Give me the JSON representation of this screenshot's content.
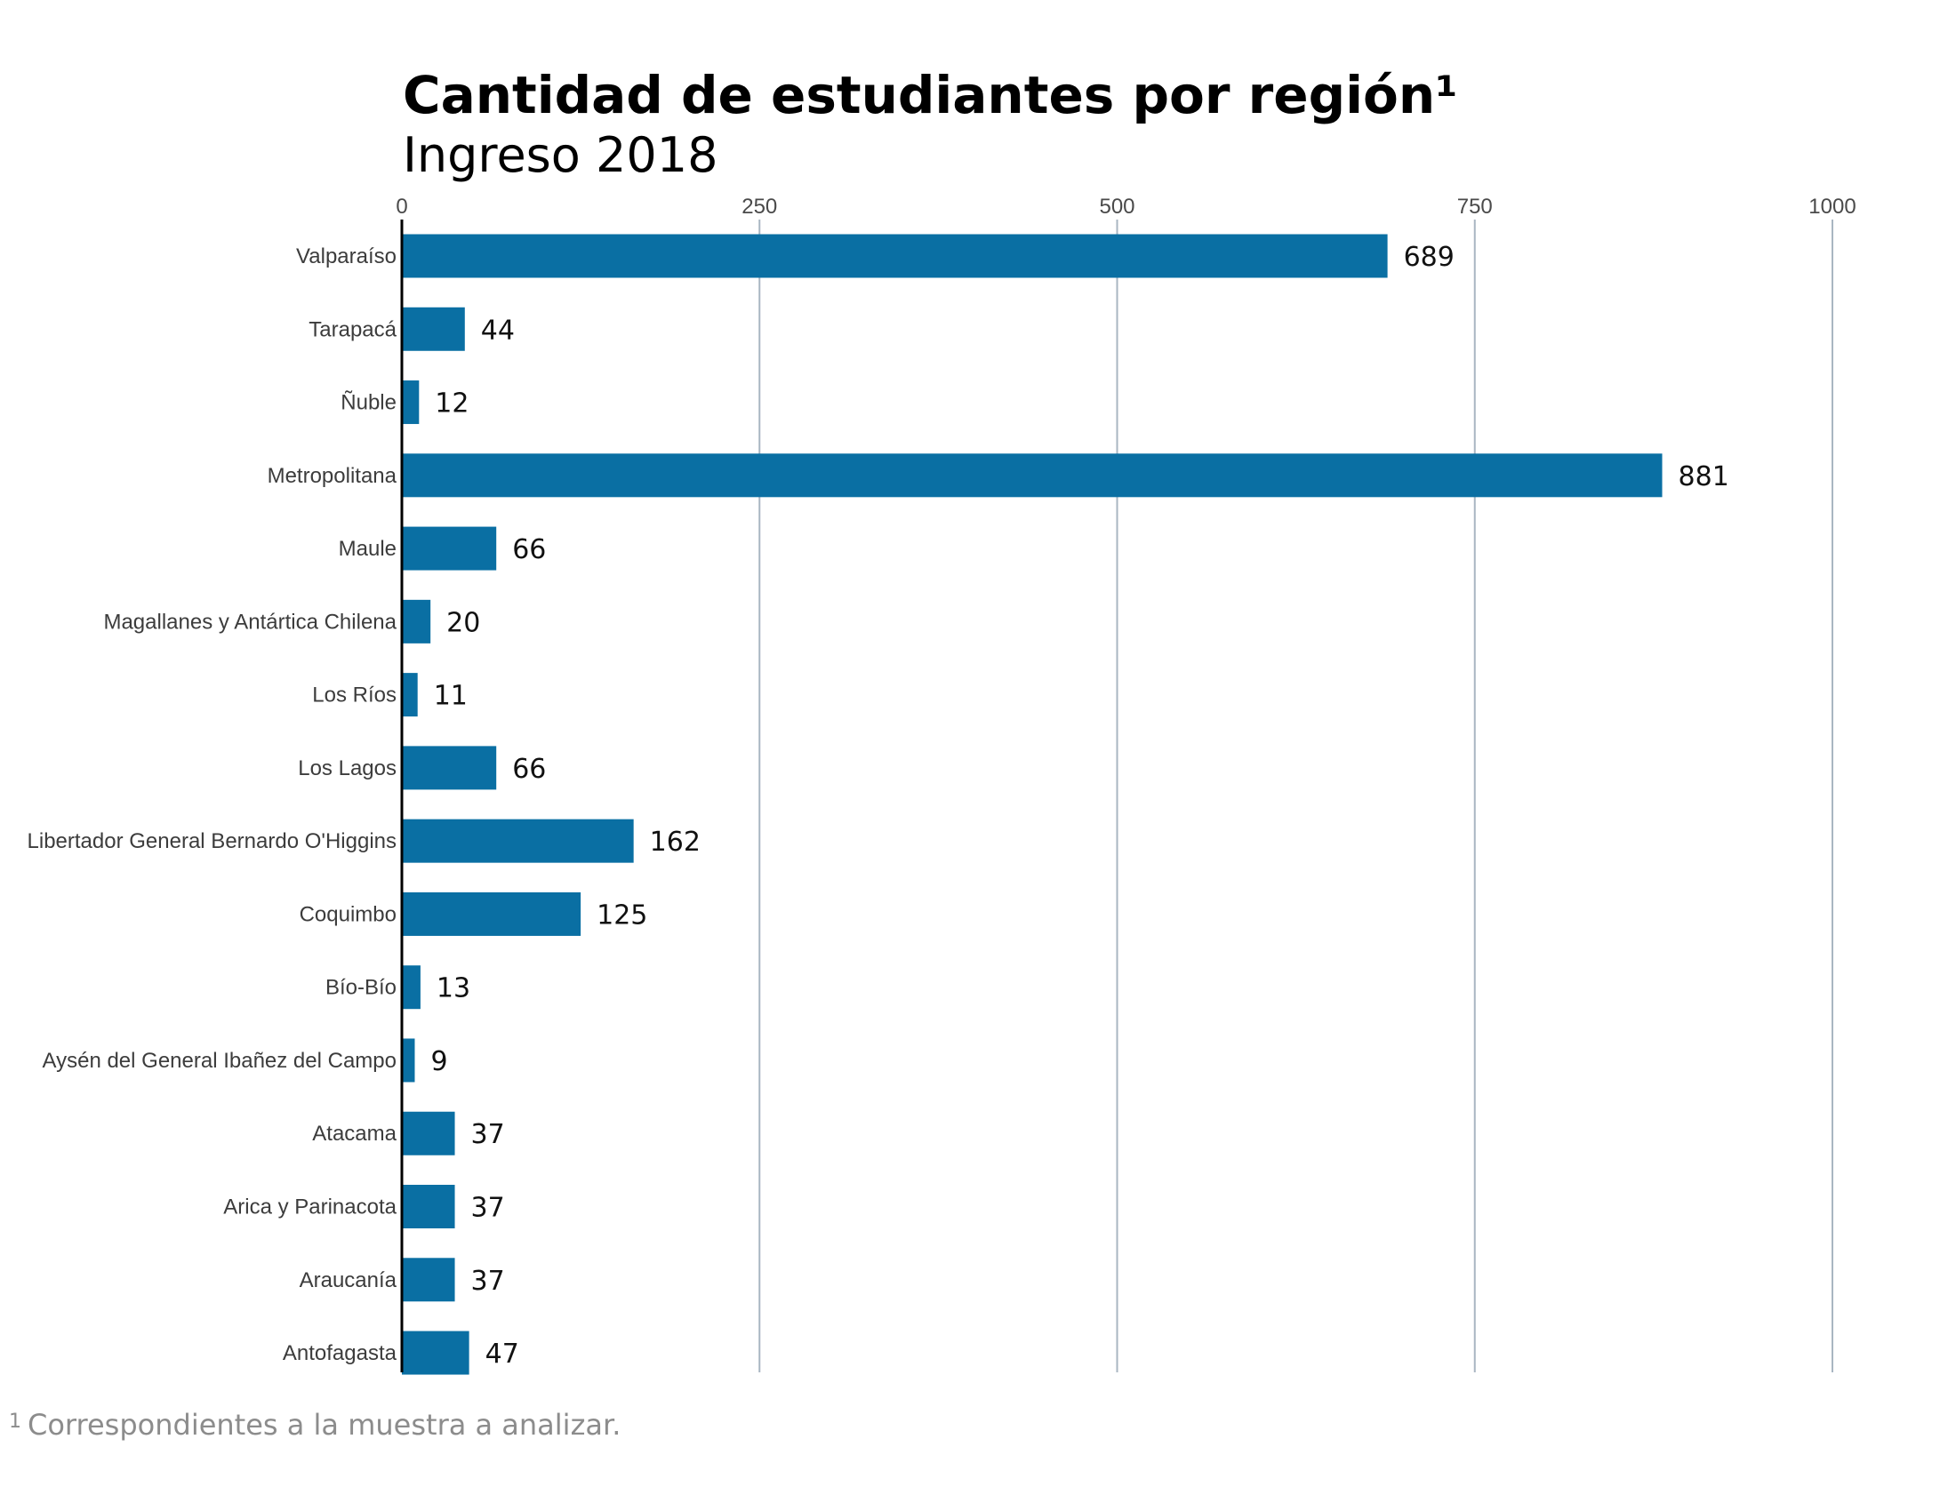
{
  "chart_data": {
    "type": "bar",
    "orientation": "horizontal",
    "title": "Cantidad de estudiantes por región¹",
    "subtitle": "Ingreso 2018",
    "xlabel": "",
    "ylabel": "",
    "xlim": [
      0,
      1000
    ],
    "x_ticks": [
      0,
      250,
      500,
      750,
      1000
    ],
    "x_tick_labels": [
      "0",
      "250",
      "500",
      "750",
      "1000"
    ],
    "x_axis_position": "top",
    "grid": true,
    "legend": "none",
    "categories": [
      "Valparaíso",
      "Tarapacá",
      "Ñuble",
      "Metropolitana",
      "Maule",
      "Magallanes y Antártica Chilena",
      "Los Ríos",
      "Los Lagos",
      "Libertador General Bernardo O'Higgins",
      "Coquimbo",
      "Bío-Bío",
      "Aysén del General Ibañez del Campo",
      "Atacama",
      "Arica y Parinacota",
      "Araucanía",
      "Antofagasta"
    ],
    "values": [
      689,
      44,
      12,
      881,
      66,
      20,
      11,
      66,
      162,
      125,
      13,
      9,
      37,
      37,
      37,
      47
    ],
    "data_labels": [
      "689",
      "44",
      "12",
      "881",
      "66",
      "20",
      "11",
      "66",
      "162",
      "125",
      "13",
      "9",
      "37",
      "37",
      "37",
      "47"
    ],
    "footnote_mark": "1",
    "footnote": "Correspondientes a la muestra a analizar.",
    "colors": {
      "bar": "#0a6fa3",
      "grid": "#a9b6c2",
      "axis": "#000000",
      "tick_text": "#4a4a4a",
      "category_text": "#3c3c3c",
      "footnote_text": "#8c8c8c"
    }
  }
}
